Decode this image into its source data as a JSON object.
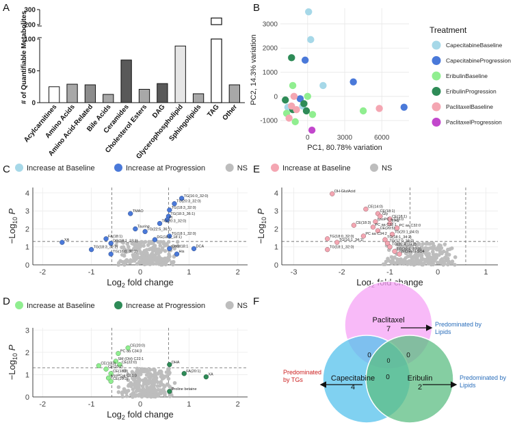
{
  "panel_labels": [
    "A",
    "B",
    "C",
    "D",
    "E",
    "F"
  ],
  "chart_data": [
    {
      "id": "A",
      "type": "bar",
      "ylabel": "# of Quantifiable Metabolites",
      "ylim_lower": [
        0,
        100
      ],
      "ylim_upper": [
        200,
        300
      ],
      "lower_ticks": [
        0,
        50,
        100
      ],
      "upper_ticks": [
        200,
        300
      ],
      "categories": [
        "Acylcarnitines",
        "Amino Acids",
        "Amino Acid-Related",
        "Bile Acids",
        "Ceramides",
        "Cholesterol Esters",
        "DAG",
        "Glycerophospholipid",
        "Sphingolipids",
        "TAG",
        "Other"
      ],
      "values": [
        25,
        29,
        28,
        13,
        67,
        21,
        30,
        89,
        14,
        244,
        28
      ],
      "colors": [
        "#ffffff",
        "#a8a8a8",
        "#8c8c8c",
        "#a8a8a8",
        "#595959",
        "#a8a8a8",
        "#595959",
        "#e6e6e6",
        "#a8a8a8",
        "#ffffff",
        "#a8a8a8"
      ]
    },
    {
      "id": "B",
      "type": "scatter",
      "xlabel": "PC1, 80.78% variation",
      "ylabel": "PC2, 14.3% variation",
      "xlim": [
        -2200,
        8200
      ],
      "ylim": [
        -1450,
        3650
      ],
      "xticks": [
        0,
        3000,
        6000
      ],
      "yticks": [
        -1000,
        0,
        1000,
        2000,
        3000
      ],
      "legend_title": "Treatment",
      "legend": [
        {
          "name": "CapecitabineBaseline",
          "color": "#a6d8e8"
        },
        {
          "name": "CapecitabineProgression",
          "color": "#4a79d9"
        },
        {
          "name": "EribulinBaseline",
          "color": "#90ee90"
        },
        {
          "name": "EribulinProgression",
          "color": "#2e8b57"
        },
        {
          "name": "PaclitaxelBaseline",
          "color": "#f4a6b2"
        },
        {
          "name": "PaclitaxelProgression",
          "color": "#c247cc"
        }
      ],
      "points": [
        {
          "g": 0,
          "x": 80,
          "y": 3500
        },
        {
          "g": 0,
          "x": 250,
          "y": 2350
        },
        {
          "g": 0,
          "x": 1250,
          "y": 450
        },
        {
          "g": 0,
          "x": -400,
          "y": -400
        },
        {
          "g": 0,
          "x": -1600,
          "y": -450
        },
        {
          "g": 1,
          "x": -200,
          "y": 1500
        },
        {
          "g": 1,
          "x": 3700,
          "y": 600
        },
        {
          "g": 1,
          "x": 7800,
          "y": -450
        },
        {
          "g": 1,
          "x": -600,
          "y": -100
        },
        {
          "g": 2,
          "x": -1200,
          "y": 450
        },
        {
          "g": 2,
          "x": 4500,
          "y": -600
        },
        {
          "g": 2,
          "x": 400,
          "y": -750
        },
        {
          "g": 2,
          "x": -1000,
          "y": -1050
        },
        {
          "g": 2,
          "x": 0,
          "y": 0
        },
        {
          "g": 2,
          "x": -1700,
          "y": -700
        },
        {
          "g": 3,
          "x": -1300,
          "y": 1600
        },
        {
          "g": 3,
          "x": -1800,
          "y": -150
        },
        {
          "g": 3,
          "x": -100,
          "y": -600
        },
        {
          "g": 3,
          "x": -1200,
          "y": -550
        },
        {
          "g": 3,
          "x": -300,
          "y": -300
        },
        {
          "g": 4,
          "x": -1300,
          "y": -400
        },
        {
          "g": 4,
          "x": -900,
          "y": -550
        },
        {
          "g": 4,
          "x": 5800,
          "y": -500
        },
        {
          "g": 4,
          "x": -1500,
          "y": -900
        },
        {
          "g": 4,
          "x": -1100,
          "y": 0
        },
        {
          "g": 5,
          "x": 350,
          "y": -1400
        }
      ]
    },
    {
      "id": "C",
      "type": "scatter",
      "xlabel": "Log2 fold change",
      "ylabel": "-Log10 P",
      "xlim": [
        -2.2,
        2.2
      ],
      "ylim": [
        0,
        4.3
      ],
      "xticks": [
        -2,
        -1,
        0,
        1,
        2
      ],
      "yticks": [
        0,
        1,
        2,
        3,
        4
      ],
      "vlines": [
        -0.58,
        0.58
      ],
      "hline": 1.3,
      "legend": [
        {
          "name": "Increase at Baseline",
          "color": "#a6d8e8"
        },
        {
          "name": "Increase at Progression",
          "color": "#4a79d9"
        },
        {
          "name": "NS",
          "color": "#bdbdbd"
        }
      ],
      "labeled_points": [
        {
          "g": 1,
          "x": 0.85,
          "y": 3.7,
          "label": "TG(16:0_32:0)"
        },
        {
          "g": 1,
          "x": 0.7,
          "y": 3.4,
          "label": "TG(20:3_32:0)"
        },
        {
          "g": 1,
          "x": 0.6,
          "y": 3.05,
          "label": "TG(18:3_32:0)"
        },
        {
          "g": 1,
          "x": -0.2,
          "y": 2.85,
          "label": "TMAO"
        },
        {
          "g": 1,
          "x": 0.58,
          "y": 2.7,
          "label": "TG(18:3_36:1)"
        },
        {
          "g": 1,
          "x": 0.55,
          "y": 2.5,
          "label": "PI"
        },
        {
          "g": 1,
          "x": 0.4,
          "y": 2.3,
          "label": "TG(20:3_32:0)"
        },
        {
          "g": 1,
          "x": -0.1,
          "y": 2.0,
          "label": "Taurine"
        },
        {
          "g": 1,
          "x": 0.1,
          "y": 1.85,
          "label": "TG(22:5_36:1)"
        },
        {
          "g": 1,
          "x": 0.6,
          "y": 1.6,
          "label": "TG(18:1_32:0)"
        },
        {
          "g": 1,
          "x": 0.3,
          "y": 1.4,
          "label": "DG(18:1_18:1)"
        },
        {
          "g": 1,
          "x": -0.7,
          "y": 1.45,
          "label": "FA(18:1)"
        },
        {
          "g": 1,
          "x": -0.6,
          "y": 1.2,
          "label": "DG(18:1_18:1)"
        },
        {
          "g": 1,
          "x": 1.1,
          "y": 0.9,
          "label": "DCA"
        },
        {
          "g": 1,
          "x": -1.6,
          "y": 1.25,
          "label": "XA"
        },
        {
          "g": 1,
          "x": 0.6,
          "y": 0.9,
          "label": "Cer(d18:1"
        },
        {
          "g": 1,
          "x": -1.0,
          "y": 0.85,
          "label": "TG(18:3_32:2)"
        },
        {
          "g": 1,
          "x": 0.75,
          "y": 0.6,
          "label": "His"
        },
        {
          "g": 1,
          "x": -0.6,
          "y": 0.6,
          "label": "TG(16:0_30:1)"
        }
      ]
    },
    {
      "id": "D",
      "type": "scatter",
      "xlabel": "Log2 fold change",
      "ylabel": "-Log10 P",
      "xlim": [
        -2.2,
        2.2
      ],
      "ylim": [
        0,
        3.1
      ],
      "xticks": [
        -2,
        -1,
        0,
        1,
        2
      ],
      "yticks": [
        0,
        1,
        2,
        3
      ],
      "vlines": [
        -0.58,
        0.58
      ],
      "hline": 1.3,
      "legend": [
        {
          "name": "Increase at Baseline",
          "color": "#90ee90"
        },
        {
          "name": "Increase at Progression",
          "color": "#2e8b57"
        },
        {
          "name": "NS",
          "color": "#bdbdbd"
        }
      ],
      "labeled_points": [
        {
          "g": 0,
          "x": -0.25,
          "y": 2.2,
          "label": "CE(20:0)"
        },
        {
          "g": 0,
          "x": -0.45,
          "y": 1.95,
          "label": "PC aa C34:3"
        },
        {
          "g": 0,
          "x": -0.5,
          "y": 1.6,
          "label": "SM (OH) C22:1"
        },
        {
          "g": 0,
          "x": -0.42,
          "y": 1.45,
          "label": "CE(22:0)"
        },
        {
          "g": 0,
          "x": -0.85,
          "y": 1.4,
          "label": "CE(16:3)"
        },
        {
          "g": 0,
          "x": -0.7,
          "y": 1.25,
          "label": "CE(20:2)"
        },
        {
          "g": 0,
          "x": -0.6,
          "y": 1.05,
          "label": "CE(18:3)"
        },
        {
          "g": 0,
          "x": -0.65,
          "y": 0.85,
          "label": "lysoPC a C14:0"
        },
        {
          "g": 0,
          "x": -0.6,
          "y": 0.7,
          "label": "CE(20:3)"
        },
        {
          "g": 1,
          "x": 0.6,
          "y": 1.45,
          "label": "DHA"
        },
        {
          "g": 1,
          "x": 0.9,
          "y": 1.05,
          "label": "FA(20:1)"
        },
        {
          "g": 1,
          "x": 1.35,
          "y": 0.9,
          "label": "XA"
        },
        {
          "g": 1,
          "x": 0.6,
          "y": 0.25,
          "label": "Proline betaine"
        }
      ]
    },
    {
      "id": "E",
      "type": "scatter",
      "xlabel": "Log2 fold change",
      "ylabel": "-Log10 P",
      "xlim": [
        -3.25,
        1.25
      ],
      "ylim": [
        0,
        4.3
      ],
      "xticks": [
        -3,
        -2,
        -1,
        0,
        1
      ],
      "yticks": [
        0,
        1,
        2,
        3,
        4
      ],
      "vlines": [
        -0.58,
        0.58
      ],
      "hline": 1.3,
      "legend": [
        {
          "name": "Increase at Baseline",
          "color": "#f4a6b2"
        },
        {
          "name": "NS",
          "color": "#bdbdbd"
        }
      ],
      "labeled_points": [
        {
          "g": 0,
          "x": -2.2,
          "y": 3.95,
          "label": "OH-GlutAcid"
        },
        {
          "g": 0,
          "x": -1.5,
          "y": 3.1,
          "label": "CE(14:0)"
        },
        {
          "g": 0,
          "x": -1.25,
          "y": 2.85,
          "label": "CE(18:1)"
        },
        {
          "g": 0,
          "x": -1.2,
          "y": 2.7,
          "label": "Gly"
        },
        {
          "g": 0,
          "x": -1.0,
          "y": 2.55,
          "label": "CE(18:1)"
        },
        {
          "g": 0,
          "x": -1.3,
          "y": 2.4,
          "label": "lysoPC a C16:0"
        },
        {
          "g": 0,
          "x": -1.0,
          "y": 2.3,
          "label": "EPA"
        },
        {
          "g": 0,
          "x": -1.75,
          "y": 2.2,
          "label": "CE(18:3)"
        },
        {
          "g": 0,
          "x": -1.35,
          "y": 2.1,
          "label": "PC aa C32:1"
        },
        {
          "g": 0,
          "x": -0.85,
          "y": 2.05,
          "label": "PC aa C32:0"
        },
        {
          "g": 0,
          "x": -1.25,
          "y": 1.9,
          "label": "CE(20:5)"
        },
        {
          "g": 0,
          "x": -0.95,
          "y": 1.7,
          "label": "TG(20:1_34:0)"
        },
        {
          "g": 0,
          "x": -1.55,
          "y": 1.6,
          "label": "PC aa C34:2"
        },
        {
          "g": 0,
          "x": -2.3,
          "y": 1.45,
          "label": "TG(18:0_32:0)"
        },
        {
          "g": 0,
          "x": -1.1,
          "y": 1.4,
          "label": "TG(18:1_34:2)"
        },
        {
          "g": 0,
          "x": -2.1,
          "y": 1.25,
          "label": "TG(16:1_34:1)"
        },
        {
          "g": 0,
          "x": -1.05,
          "y": 1.2,
          "label": "TG(17:0_34:2)"
        },
        {
          "g": 0,
          "x": -2.3,
          "y": 0.85,
          "label": "TG(18:1_32:0)"
        },
        {
          "g": 0,
          "x": -1.0,
          "y": 1.0,
          "label": "TG(20:4_34:2)"
        },
        {
          "g": 0,
          "x": -0.9,
          "y": 0.75,
          "label": "TG(20:4_32:0)"
        },
        {
          "g": 0,
          "x": -0.8,
          "y": 0.6,
          "label": "p-Cresol-SO4"
        }
      ]
    }
  ],
  "venn": {
    "sets": [
      {
        "name": "Paclitaxel",
        "count": "7",
        "color": "#f5a3f5"
      },
      {
        "name": "Capecitabine",
        "count": "4",
        "color": "#55c1ec"
      },
      {
        "name": "Eribulin",
        "count": "2",
        "color": "#5cbd83"
      }
    ],
    "overlaps": {
      "pac_cap": "0",
      "pac_eri": "0",
      "cap_eri": "0",
      "all": "0"
    },
    "annotations": [
      {
        "text": "Predominated by Lipids",
        "color": "#2a6ebb"
      },
      {
        "text": "Predominated by TGs",
        "color": "#cc1f1f"
      },
      {
        "text": "Predominated by Lipids",
        "color": "#2a6ebb"
      }
    ]
  }
}
